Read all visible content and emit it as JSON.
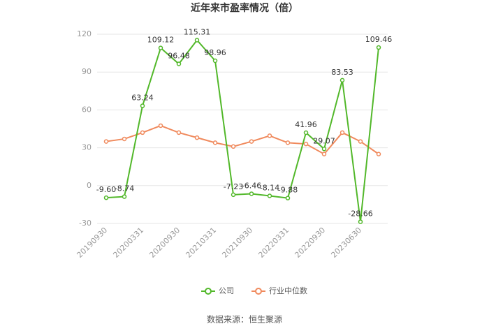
{
  "chart_data": {
    "type": "line",
    "title": "近年来市盈率情况（倍）",
    "source": "数据来源：恒生聚源",
    "categories": [
      "20190930",
      null,
      "20200331",
      null,
      "20200930",
      null,
      "20210331",
      null,
      "20210930",
      null,
      "20220331",
      null,
      "20220930",
      null,
      "20230630",
      null
    ],
    "series": [
      {
        "name": "公司",
        "color": "#52b82a",
        "values": [
          -9.6,
          -8.74,
          63.24,
          109.12,
          96.48,
          115.31,
          98.96,
          -7.23,
          -6.46,
          -8.14,
          -9.88,
          41.96,
          29.07,
          83.53,
          -28.66,
          109.46
        ],
        "value_labels": [
          "-9.60",
          "-8.74",
          "63.24",
          "109.12",
          "96.48",
          "115.31",
          "98.96",
          "-7.23",
          "-6.46",
          "-8.14",
          "-9.88",
          "41.96",
          "29.07",
          "83.53",
          "-28.66",
          "109.46"
        ]
      },
      {
        "name": "行业中位数",
        "color": "#f08a5d",
        "values": [
          35,
          37,
          42,
          47.5,
          42,
          38,
          34,
          31,
          35,
          39.5,
          34,
          33,
          25,
          42,
          35,
          25
        ]
      }
    ],
    "ylim": [
      -30,
      120
    ],
    "yticks": [
      -30,
      0,
      30,
      60,
      90,
      120
    ],
    "grid": true
  }
}
